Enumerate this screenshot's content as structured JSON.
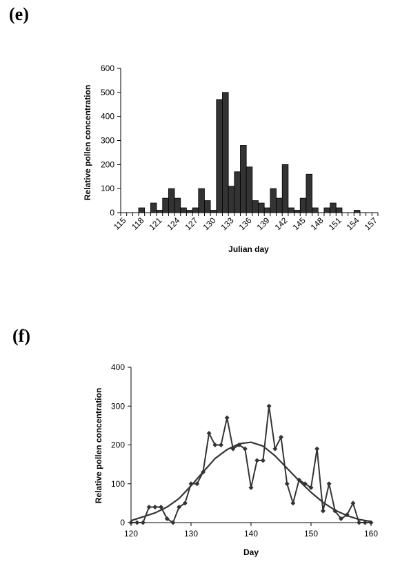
{
  "panels": {
    "e": {
      "label": "(e)",
      "chart_data": {
        "type": "bar",
        "xlabel": "Julian day",
        "ylabel": "Relative pollen concentration",
        "ylim": [
          0,
          600
        ],
        "yticks": [
          0,
          100,
          200,
          300,
          400,
          500,
          600
        ],
        "x_tick_labels": [
          "115",
          "118",
          "121",
          "124",
          "127",
          "130",
          "133",
          "136",
          "139",
          "142",
          "145",
          "148",
          "151",
          "154",
          "157"
        ],
        "categories": [
          115,
          116,
          117,
          118,
          119,
          120,
          121,
          122,
          123,
          124,
          125,
          126,
          127,
          128,
          129,
          130,
          131,
          132,
          133,
          134,
          135,
          136,
          137,
          138,
          139,
          140,
          141,
          142,
          143,
          144,
          145,
          146,
          147,
          148,
          149,
          150,
          151,
          152,
          153,
          154,
          155,
          156,
          157
        ],
        "values": [
          0,
          0,
          0,
          20,
          0,
          40,
          10,
          60,
          100,
          60,
          20,
          10,
          20,
          100,
          50,
          10,
          470,
          500,
          110,
          170,
          280,
          190,
          50,
          40,
          20,
          100,
          60,
          200,
          20,
          10,
          60,
          160,
          20,
          0,
          20,
          40,
          20,
          0,
          0,
          10,
          0,
          0,
          0
        ],
        "grid": false,
        "bar_color": "#333333"
      }
    },
    "f": {
      "label": "(f)",
      "chart_data": {
        "type": "line",
        "xlabel": "Day",
        "ylabel": "Relative pollen concentration",
        "xlim": [
          120,
          160
        ],
        "ylim": [
          0,
          400
        ],
        "xticks": [
          120,
          130,
          140,
          150,
          160
        ],
        "yticks": [
          0,
          100,
          200,
          300,
          400
        ],
        "grid": false,
        "series": [
          {
            "marker": "diamond",
            "x": [
              120,
              121,
              122,
              123,
              124,
              125,
              126,
              127,
              128,
              129,
              130,
              131,
              132,
              133,
              134,
              135,
              136,
              137,
              138,
              139,
              140,
              141,
              142,
              143,
              144,
              145,
              146,
              147,
              148,
              149,
              150,
              151,
              152,
              153,
              154,
              155,
              156,
              157,
              158,
              159,
              160
            ],
            "y": [
              0,
              0,
              0,
              40,
              40,
              40,
              10,
              0,
              40,
              50,
              100,
              100,
              130,
              230,
              200,
              200,
              270,
              190,
              200,
              190,
              90,
              160,
              160,
              300,
              190,
              220,
              100,
              50,
              110,
              100,
              90,
              190,
              30,
              100,
              30,
              10,
              20,
              50,
              0,
              0,
              0
            ]
          },
          {
            "marker": "none",
            "x": [
              120,
              122,
              124,
              126,
              128,
              130,
              132,
              134,
              136,
              138,
              140,
              142,
              144,
              146,
              148,
              150,
              152,
              154,
              156,
              158,
              160
            ],
            "y": [
              5,
              15,
              25,
              40,
              62,
              95,
              130,
              165,
              188,
              203,
              207,
              197,
              172,
              140,
              108,
              78,
              52,
              32,
              18,
              8,
              3
            ]
          }
        ],
        "line_color": "#333333"
      }
    }
  }
}
